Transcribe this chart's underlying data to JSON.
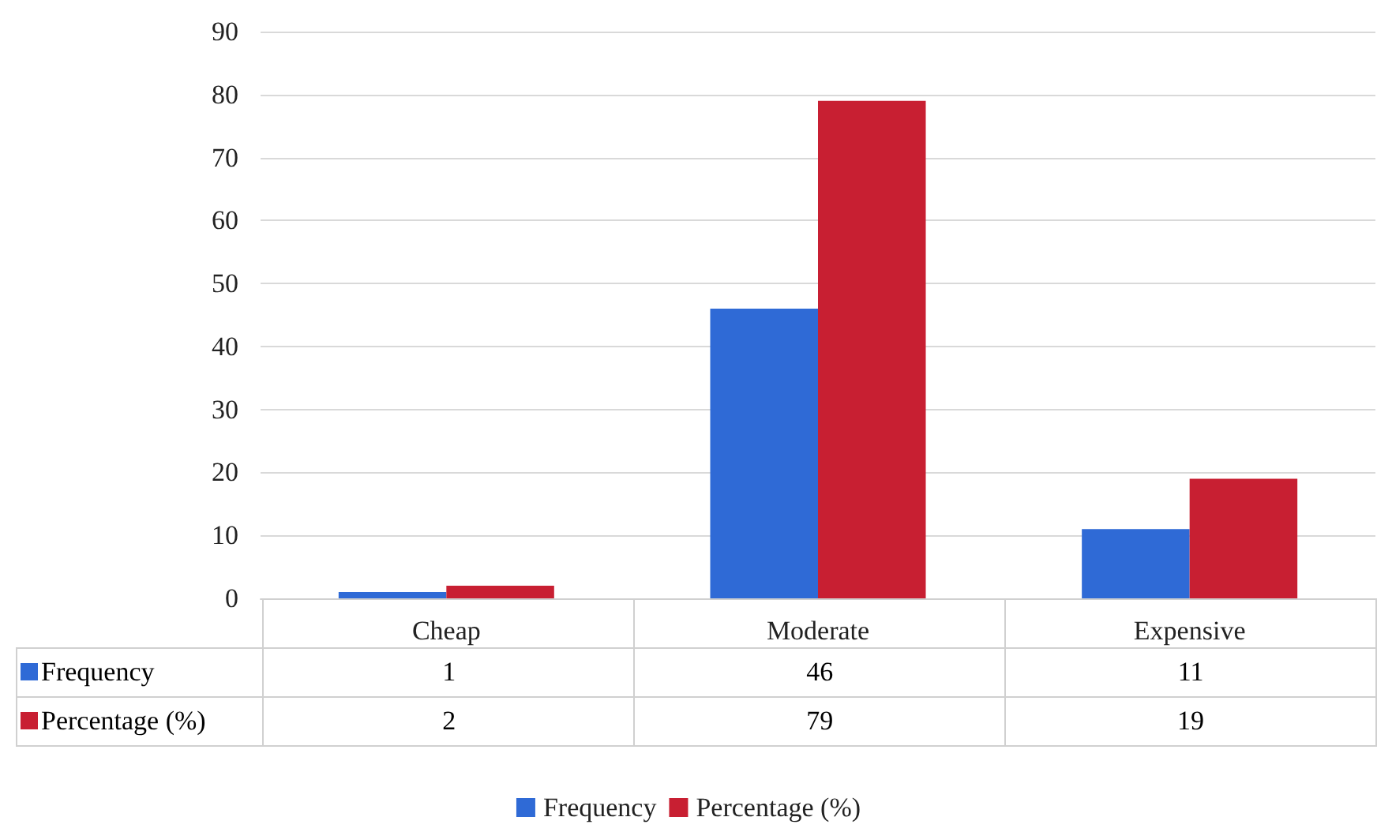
{
  "chart_data": {
    "type": "bar",
    "categories": [
      "Cheap",
      "Moderate",
      "Expensive"
    ],
    "series": [
      {
        "name": "Frequency",
        "color": "#2f6ad6",
        "values": [
          1,
          46,
          11
        ]
      },
      {
        "name": "Percentage (%)",
        "color": "#c81f32",
        "values": [
          2,
          79,
          19
        ]
      }
    ],
    "ylim": [
      0,
      90
    ],
    "yticks": [
      0,
      10,
      20,
      30,
      40,
      50,
      60,
      70,
      80,
      90
    ],
    "grid": "y",
    "legend": "bottom",
    "data_labels": true
  }
}
